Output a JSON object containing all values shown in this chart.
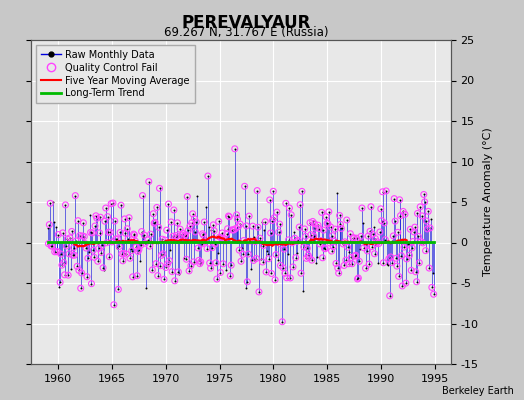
{
  "title": "PEREVALYAUR",
  "subtitle": "69.267 N, 31.767 E (Russia)",
  "ylabel_right": "Temperature Anomaly (°C)",
  "credit": "Berkeley Earth",
  "xlim": [
    1957.5,
    1996.5
  ],
  "ylim": [
    -15,
    25
  ],
  "yticks": [
    -15,
    -10,
    -5,
    0,
    5,
    10,
    15,
    20,
    25
  ],
  "xticks": [
    1960,
    1965,
    1970,
    1975,
    1980,
    1985,
    1990,
    1995
  ],
  "raw_color": "#0000dd",
  "qc_color": "#ff44ff",
  "moving_avg_color": "#ff0000",
  "trend_color": "#00bb00",
  "plot_bg": "#e8e8e8",
  "fig_bg": "#c8c8c8",
  "grid_color": "#ffffff",
  "seed": 42,
  "start_year": 1959.0,
  "end_year": 1995.5,
  "n_months": 432,
  "raw_std": 3.0,
  "trend_slope": 0.0,
  "trend_intercept": 0.05,
  "ma_window": 60
}
